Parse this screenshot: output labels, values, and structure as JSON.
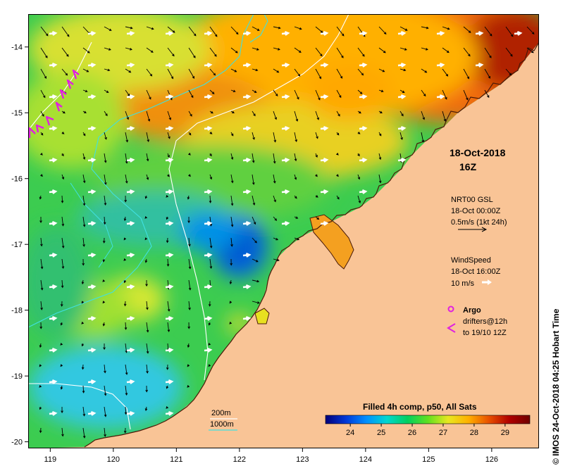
{
  "date": "18-Oct-2018",
  "hour": "16Z",
  "currents_legend": {
    "title": "NRT00 GSL",
    "time": "18-Oct 00:00Z",
    "scale": "0.5m/s (1kt 24h)"
  },
  "wind_legend": {
    "title": "WindSpeed",
    "time": "18-Oct 16:00Z",
    "scale": "10 m/s"
  },
  "argo_legend": {
    "argo": "Argo",
    "drifters_line1": "drifters@12h",
    "drifters_line2": "to 19/10 12Z"
  },
  "isobaths": {
    "shallow": "200m",
    "deep": "1000m"
  },
  "colorbar": {
    "title": "Filled 4h comp, p50, All Sats",
    "ticks": [
      "24",
      "25",
      "26",
      "27",
      "28",
      "29"
    ],
    "min": 23.2,
    "max": 29.8,
    "colors": [
      "#00007a",
      "#0038d8",
      "#0090ff",
      "#00d8d0",
      "#00d060",
      "#60e020",
      "#e8e820",
      "#ffb000",
      "#e85000",
      "#b00000",
      "#700000"
    ]
  },
  "x_ticks": [
    "119",
    "120",
    "121",
    "122",
    "123",
    "124",
    "125",
    "126"
  ],
  "y_ticks": [
    "-14",
    "-15",
    "-16",
    "-17",
    "-18",
    "-19",
    "-20"
  ],
  "lon_range": [
    118.65,
    126.75
  ],
  "lat_range": [
    -13.5,
    -20.1
  ],
  "colors": {
    "land": "#f9c496",
    "coastline": "#4a1a08",
    "isobath_200": "#ffffff",
    "isobath_1000": "#40e0e0",
    "argo": "#e020e0",
    "current_arrow": "#000000",
    "wind_arrow": "#ffffff"
  },
  "copyright": "© IMOS 24-Oct-2018 04:25 Hobart Time"
}
